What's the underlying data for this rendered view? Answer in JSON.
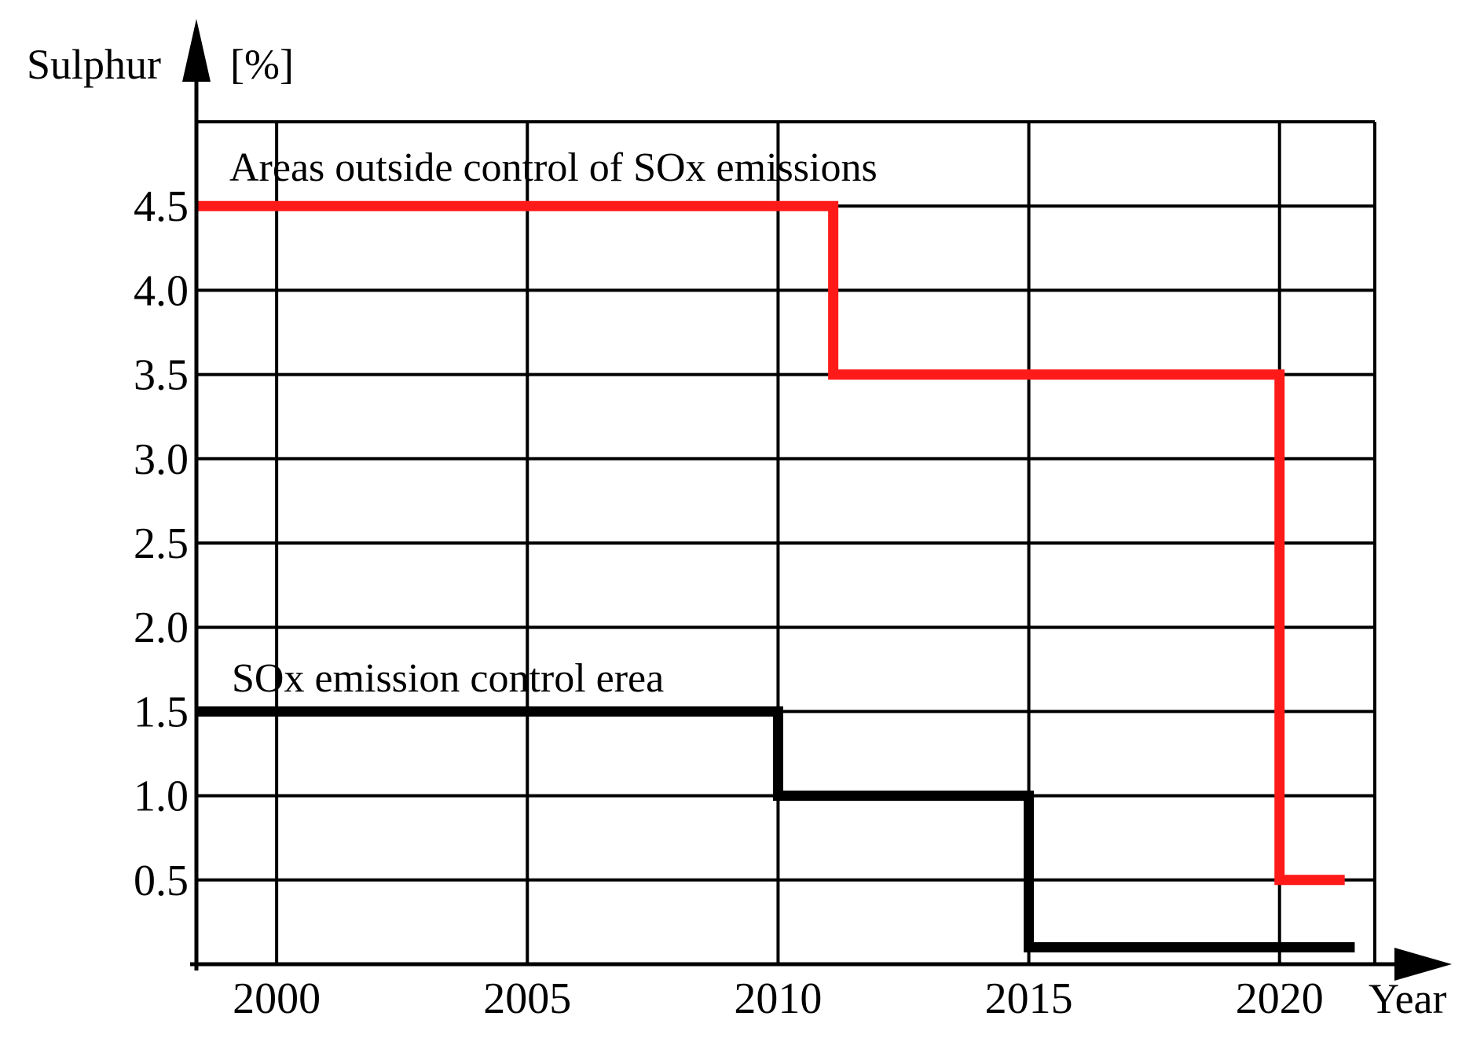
{
  "chart_data": {
    "type": "line",
    "step": true,
    "ylabel": "Sulphur",
    "ylabel_unit": "[%]",
    "xlabel": "Year",
    "xlim": [
      1998.4,
      2021.9
    ],
    "ylim": [
      0,
      5.0
    ],
    "yticks": [
      0.5,
      1.0,
      1.5,
      2.0,
      2.5,
      3.0,
      3.5,
      4.0,
      4.5
    ],
    "ytick_labels": [
      "0.5",
      "1.0",
      "1.5",
      "2.0",
      "2.5",
      "3.0",
      "3.5",
      "4.0",
      "4.5"
    ],
    "xticks": [
      2000,
      2005,
      2010,
      2015,
      2020
    ],
    "xtick_labels": [
      "2000",
      "2005",
      "2010",
      "2015",
      "2020"
    ],
    "grid": true,
    "annotations": [
      {
        "text": "Areas outside control of SOx emissions",
        "series": 0
      },
      {
        "text": "SOx emission control erea",
        "series": 1
      }
    ],
    "series": [
      {
        "color": "#ff1a1a",
        "points": [
          [
            1998.4,
            4.5
          ],
          [
            2011.1,
            4.5
          ],
          [
            2011.1,
            3.5
          ],
          [
            2020.0,
            3.5
          ],
          [
            2020.0,
            0.5
          ],
          [
            2021.3,
            0.5
          ]
        ]
      },
      {
        "color": "#000000",
        "points": [
          [
            1998.4,
            1.5
          ],
          [
            2010.0,
            1.5
          ],
          [
            2010.0,
            1.0
          ],
          [
            2015.0,
            1.0
          ],
          [
            2015.0,
            0.1
          ],
          [
            2021.5,
            0.1
          ]
        ]
      }
    ]
  }
}
